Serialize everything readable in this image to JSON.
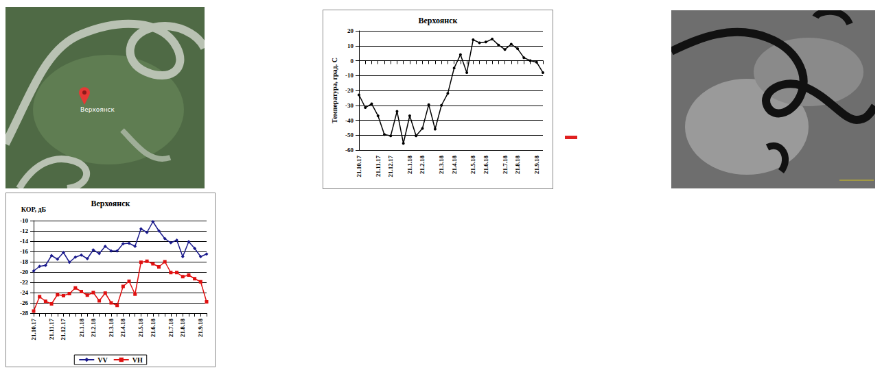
{
  "map": {
    "label": "Верхоянск"
  },
  "chart_data": [
    {
      "type": "line",
      "title": "Верхоянск",
      "y_label": "Температура, град. С",
      "categories": [
        "21.10.17",
        null,
        null,
        "21.11.17",
        null,
        "21.12.17",
        null,
        null,
        "21.1.18",
        null,
        "21.2.18",
        null,
        null,
        "21.3.18",
        null,
        "21.4.18",
        null,
        null,
        "21.5.18",
        null,
        "21.6.18",
        null,
        null,
        "21.7.18",
        null,
        "21.8.18",
        null,
        null,
        "21.9.18",
        null
      ],
      "values": [
        -23,
        -31.5,
        -29,
        -37,
        -49.5,
        -50.5,
        -34,
        -55.5,
        -37,
        -50.5,
        -45.5,
        -29.5,
        -46,
        -30,
        -22,
        -5,
        4,
        -8,
        14,
        12,
        12.5,
        14.5,
        10.5,
        7.5,
        11,
        8,
        2,
        0,
        -1,
        -8
      ],
      "color": "#000000",
      "marker": "circle",
      "line_style": "solid",
      "ylim": [
        -60,
        20
      ],
      "yticks": [
        -60,
        -50,
        -40,
        -30,
        -20,
        -10,
        0,
        10,
        20
      ],
      "grid": true
    },
    {
      "type": "line",
      "title": "Верхоянск",
      "y_label": "КОР, дБ",
      "categories": [
        "21.10.17",
        null,
        null,
        "21.11.17",
        null,
        "21.12.17",
        null,
        null,
        "21.1.18",
        null,
        "21.2.18",
        null,
        null,
        "21.3.18",
        null,
        "21.4.18",
        null,
        null,
        "21.5.18",
        null,
        "21.6.18",
        null,
        null,
        "21.7.18",
        null,
        "21.8.18",
        null,
        null,
        "21.9.18",
        null
      ],
      "series": [
        {
          "name": "VV",
          "color": "#1a1a8c",
          "marker": "diamond",
          "line_style": "solid",
          "values": [
            -19.8,
            -18.9,
            -18.7,
            -16.8,
            -17.5,
            -16.2,
            -18.1,
            -17.1,
            -16.7,
            -17.4,
            -15.7,
            -16.4,
            -15.0,
            -15.9,
            -15.9,
            -14.5,
            -14.4,
            -15.0,
            -11.6,
            -12.3,
            -10.2,
            -12.0,
            -13.5,
            -14.3,
            -13.8,
            -17.0,
            -14.1,
            -15.4,
            -17.0,
            -16.5
          ]
        },
        {
          "name": "VH",
          "color": "#e01010",
          "marker": "square",
          "line_style": "solid",
          "values": [
            -27.6,
            -24.8,
            -25.7,
            -26.2,
            -24.4,
            -24.6,
            -24.2,
            -23.1,
            -23.8,
            -24.5,
            -24.0,
            -25.6,
            -24.1,
            -26.0,
            -26.5,
            -22.8,
            -21.8,
            -24.3,
            -18.1,
            -17.9,
            -18.4,
            -19.0,
            -18.0,
            -20.1,
            -20.1,
            -20.9,
            -20.6,
            -21.3,
            -21.9,
            -25.8
          ]
        }
      ],
      "ylim": [
        -28,
        -10
      ],
      "yticks": [
        -28,
        -26,
        -24,
        -22,
        -20,
        -18,
        -16,
        -14,
        -12,
        -10
      ],
      "grid": true,
      "legend": "bottom"
    }
  ]
}
